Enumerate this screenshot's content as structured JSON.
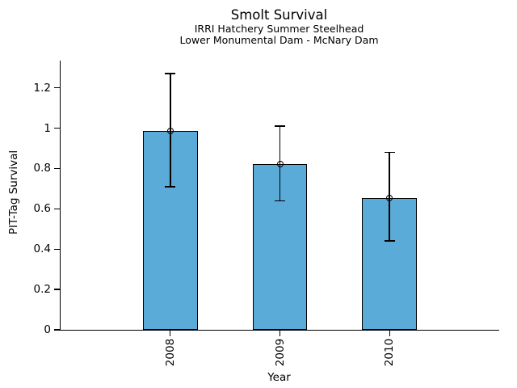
{
  "chart_data": {
    "type": "bar",
    "title": "Smolt Survival",
    "subtitle1": "IRRI Hatchery Summer Steelhead",
    "subtitle2": "Lower Monumental Dam - McNary Dam",
    "xlabel": "Year",
    "ylabel": "PIT-Tag Survival",
    "categories": [
      "2008",
      "2009",
      "2010"
    ],
    "x": [
      2008,
      2009,
      2010
    ],
    "values": [
      0.985,
      0.82,
      0.655
    ],
    "error_low": [
      0.71,
      0.64,
      0.44
    ],
    "error_high": [
      1.27,
      1.01,
      0.88
    ],
    "yticks": [
      0,
      0.2,
      0.4,
      0.6,
      0.8,
      1,
      1.2
    ],
    "ytick_labels": [
      "0",
      "0.2",
      "0.4",
      "0.6",
      "0.8",
      "1",
      "1.2"
    ],
    "ylim": [
      0,
      1.335
    ],
    "xlim": [
      2007,
      2011
    ],
    "bar_width_units": 0.5,
    "grid": false,
    "legend": null,
    "marker": "open-circle",
    "colors": {
      "bar_fill": "#5AABD8",
      "bar_edge": "#000000",
      "error_bar": "#000000",
      "axis": "#000000",
      "text": "#000000",
      "background": "#FFFFFF"
    }
  }
}
